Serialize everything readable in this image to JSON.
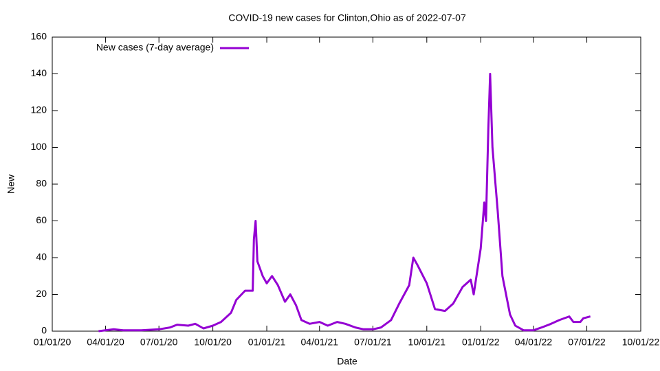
{
  "chart_data": {
    "type": "line",
    "title": "COVID-19 new cases for Clinton,Ohio as of 2022-07-07",
    "x_label": "Date",
    "y_label": "New",
    "xlim": [
      "01/01/20",
      "10/01/22"
    ],
    "xticks": [
      "01/01/20",
      "04/01/20",
      "07/01/20",
      "10/01/20",
      "01/01/21",
      "04/01/21",
      "07/01/21",
      "10/01/21",
      "01/01/22",
      "04/01/22",
      "07/01/22",
      "10/01/22"
    ],
    "ylim": [
      0,
      160
    ],
    "yticks": [
      0,
      20,
      40,
      60,
      80,
      100,
      120,
      140,
      160
    ],
    "legend": "top-left",
    "x": [
      "03/20/20",
      "04/15/20",
      "05/01/20",
      "06/01/20",
      "07/01/20",
      "07/20/20",
      "08/01/20",
      "08/20/20",
      "09/01/20",
      "09/15/20",
      "10/01/20",
      "10/15/20",
      "11/01/20",
      "11/10/20",
      "11/25/20",
      "12/08/20",
      "12/10/20",
      "12/13/20",
      "12/16/20",
      "12/25/20",
      "01/01/21",
      "01/10/21",
      "01/20/21",
      "02/01/21",
      "02/10/21",
      "02/20/21",
      "03/01/21",
      "03/15/21",
      "04/01/21",
      "04/15/21",
      "05/01/21",
      "05/15/21",
      "06/01/21",
      "06/15/21",
      "07/01/21",
      "07/15/21",
      "08/01/21",
      "08/15/21",
      "09/01/21",
      "09/08/21",
      "09/15/21",
      "10/01/21",
      "10/15/21",
      "11/01/21",
      "11/15/21",
      "12/01/21",
      "12/15/21",
      "12/20/21",
      "01/01/22",
      "01/07/22",
      "01/10/22",
      "01/14/22",
      "01/17/22",
      "01/21/22",
      "01/30/22",
      "02/07/22",
      "02/20/22",
      "03/01/22",
      "03/15/22",
      "04/01/22",
      "04/15/22",
      "05/01/22",
      "05/15/22",
      "06/01/22",
      "06/08/22",
      "06/20/22",
      "06/25/22",
      "07/07/22"
    ],
    "series": [
      {
        "name": "New cases (7-day average)",
        "color": "#9400d3",
        "values": [
          0,
          1,
          0.5,
          0.5,
          1,
          2,
          3.5,
          3,
          4,
          1.5,
          3,
          5,
          10,
          17,
          22,
          22,
          50,
          60,
          38,
          30,
          26,
          30,
          25,
          16,
          20,
          14,
          6,
          4,
          5,
          3,
          5,
          4,
          2,
          1,
          1,
          2,
          6,
          15,
          25,
          40,
          36,
          26,
          12,
          11,
          15,
          24,
          28,
          20,
          45,
          70,
          60,
          110,
          140,
          100,
          65,
          30,
          9,
          3,
          0.5,
          0.5,
          2,
          4,
          6,
          8,
          5,
          5,
          7,
          8
        ]
      }
    ]
  }
}
